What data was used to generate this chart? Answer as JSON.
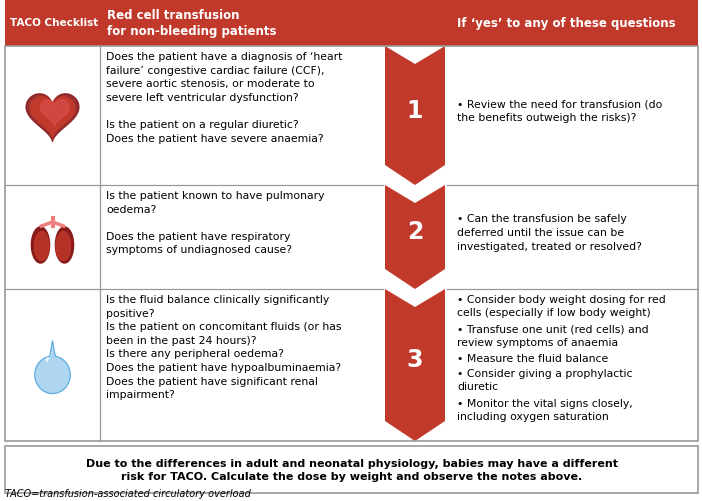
{
  "title_left": "TACO Checklist",
  "title_mid": "Red cell transfusion\nfor non-bleeding patients",
  "title_right": "If ‘yes’ to any of these questions",
  "header_bg": "#c0392b",
  "header_text_color": "#ffffff",
  "arrow_color": "#c0392b",
  "border_color": "#999999",
  "row1_questions": "Does the patient have a diagnosis of ‘heart\nfailure’ congestive cardiac failure (CCF),\nsevere aortic stenosis, or moderate to\nsevere left ventricular dysfunction?\n\nIs the patient on a regular diuretic?\nDoes the patient have severe anaemia?",
  "row2_questions": "Is the patient known to have pulmonary\noedema?\n\nDoes the patient have respiratory\nsymptoms of undiagnosed cause?",
  "row3_questions": "Is the fluid balance clinically significantly\npositive?\nIs the patient on concomitant fluids (or has\nbeen in the past 24 hours)?\nIs there any peripheral oedema?\nDoes the patient have hypoalbuminaemia?\nDoes the patient have significant renal\nimpairment?",
  "answer1_bullet": "•",
  "answer1_text": "Review the need for transfusion (do\nthe benefits outweigh the risks)?",
  "answer2_bullet": "•",
  "answer2_text": "Can the transfusion be safely\ndeferred until the issue can be\ninvestigated, treated or resolved?",
  "answer3_items": [
    "Consider body weight dosing for red\ncells (especially if low body weight)",
    "Transfuse one unit (red cells) and\nreview symptoms of anaemia",
    "Measure the fluid balance",
    "Consider giving a prophylactic\ndiuretic",
    "Monitor the vital signs closely,\nincluding oxygen saturation"
  ],
  "footer_text": "Due to the differences in adult and neonatal physiology, babies may have a different\nrisk for TACO. Calculate the dose by weight and observe the notes above.",
  "footnote": "TACO=transfusion-associated circulatory overload",
  "numbers": [
    "1",
    "2",
    "3"
  ],
  "bg_color": "#ffffff"
}
